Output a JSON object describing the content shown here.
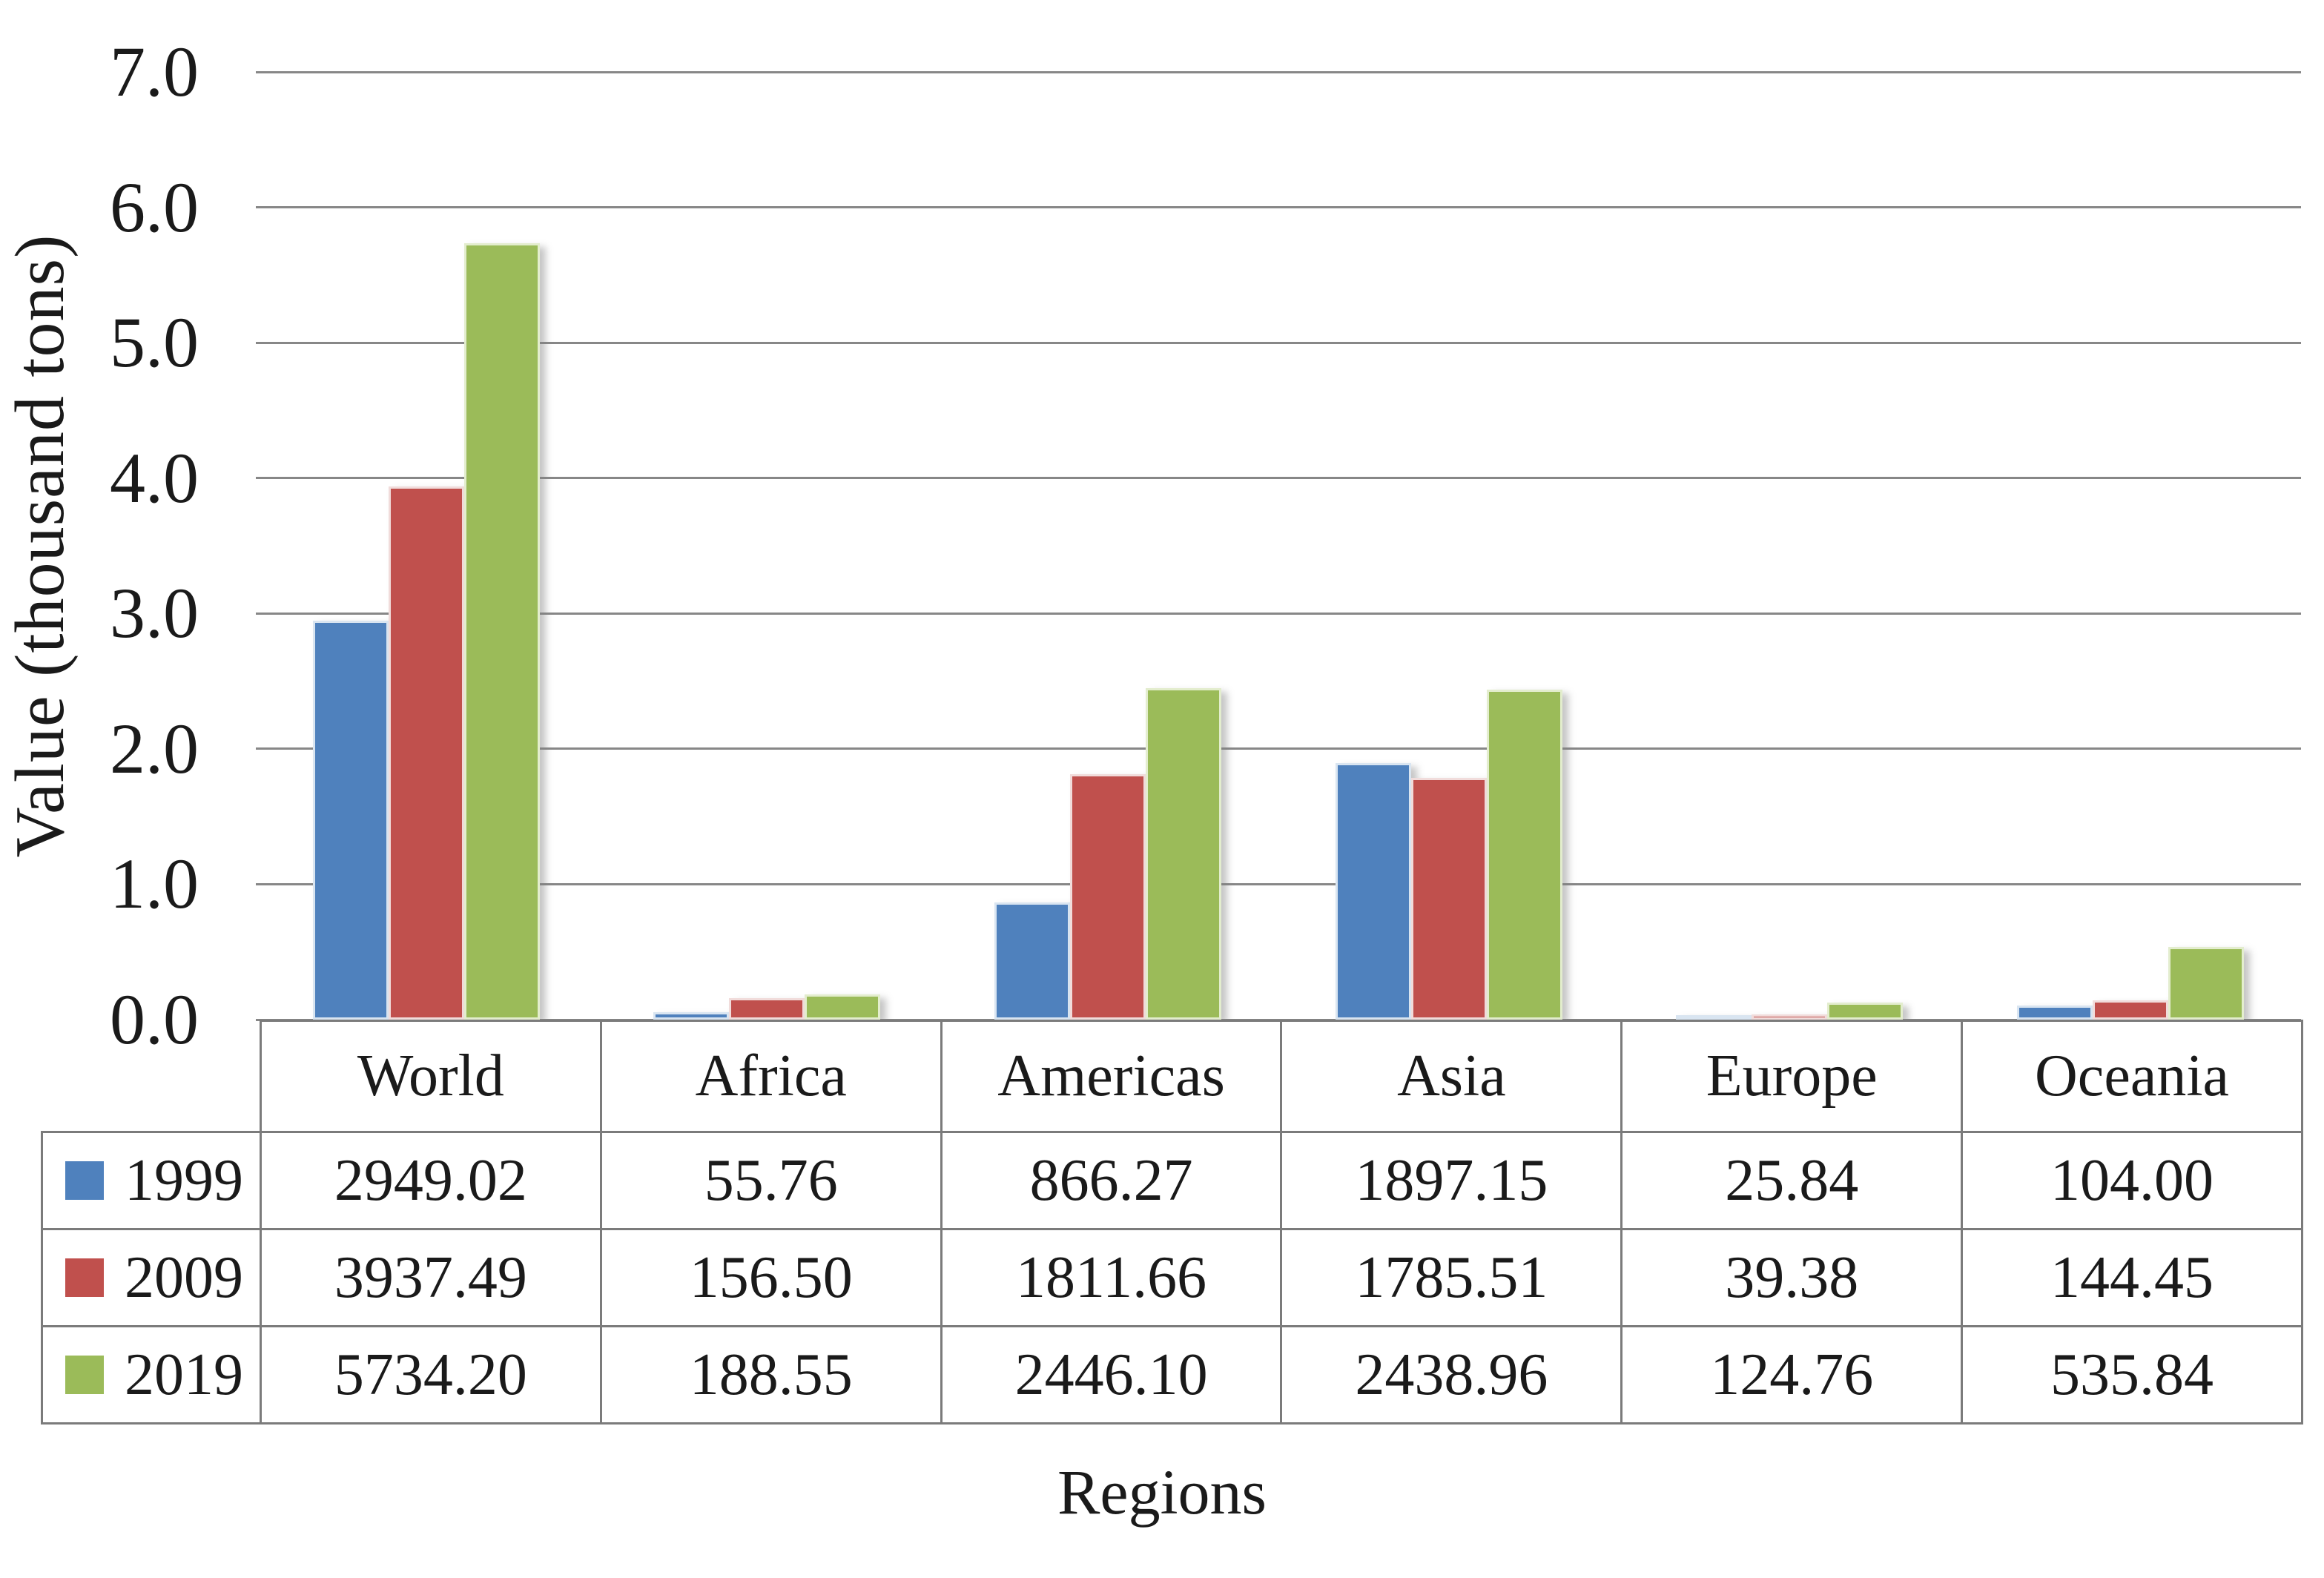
{
  "chart_data": {
    "type": "bar",
    "title": "",
    "xlabel": "Regions",
    "ylabel": "Value (thousand tons)",
    "ylim": [
      0,
      7
    ],
    "ytick_labels": [
      "7.0",
      "6.0",
      "5.0",
      "4.0",
      "3.0",
      "2.0",
      "1.0",
      "0.0"
    ],
    "grid": true,
    "legend_position": "table-left-column",
    "value_unit_divisor": 1000,
    "gridline_color": "#878787",
    "categories": [
      "World",
      "Africa",
      "Americas",
      "Asia",
      "Europe",
      "Oceania"
    ],
    "series": [
      {
        "name": "1999",
        "color": "#4F81BD",
        "edge_color": "#D9E5F1",
        "values": [
          2949.02,
          55.76,
          866.27,
          1897.15,
          25.84,
          104.0
        ]
      },
      {
        "name": "2009",
        "color": "#C0504D",
        "edge_color": "#F1DCDB",
        "values": [
          3937.49,
          156.5,
          1811.66,
          1785.51,
          39.38,
          144.45
        ]
      },
      {
        "name": "2019",
        "color": "#9BBB59",
        "edge_color": "#E3EDCE",
        "values": [
          5734.2,
          188.55,
          2446.1,
          2438.96,
          124.76,
          535.84
        ]
      }
    ]
  },
  "table": {
    "border_color": "#7b7b7b",
    "col_headers": [
      "World",
      "Africa",
      "Americas",
      "Asia",
      "Europe",
      "Oceania"
    ],
    "rows": [
      {
        "year": "1999",
        "swatch_color": "#4F81BD",
        "cells": [
          "2949.02",
          "55.76",
          "866.27",
          "1897.15",
          "25.84",
          "104.00"
        ]
      },
      {
        "year": "2009",
        "swatch_color": "#C0504D",
        "cells": [
          "3937.49",
          "156.50",
          "1811.66",
          "1785.51",
          "39.38",
          "144.45"
        ]
      },
      {
        "year": "2019",
        "swatch_color": "#9BBB59",
        "cells": [
          "5734.20",
          "188.55",
          "2446.10",
          "2438.96",
          "124.76",
          "535.84"
        ]
      }
    ]
  }
}
